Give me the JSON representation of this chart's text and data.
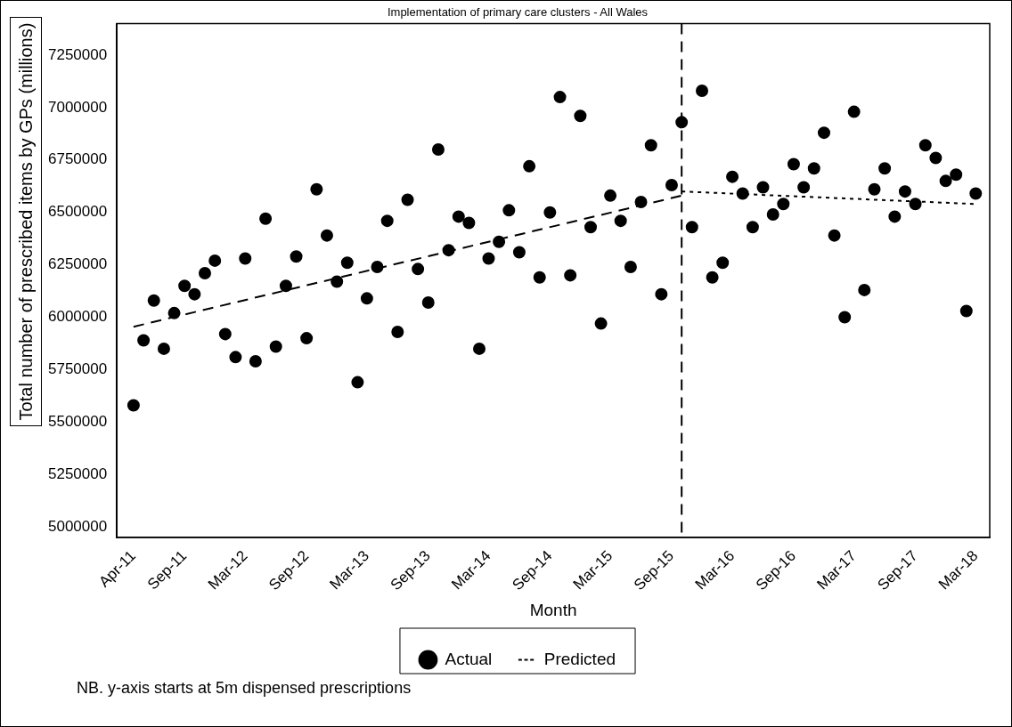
{
  "chart_data": {
    "type": "scatter",
    "title": "Implementation of primary care clusters - All Wales",
    "xlabel": "Month",
    "ylabel": "Total number of prescribed items by GPs (millions)",
    "x": [
      "2011-04",
      "2011-05",
      "2011-06",
      "2011-07",
      "2011-08",
      "2011-09",
      "2011-10",
      "2011-11",
      "2011-12",
      "2012-01",
      "2012-02",
      "2012-03",
      "2012-04",
      "2012-05",
      "2012-06",
      "2012-07",
      "2012-08",
      "2012-09",
      "2012-10",
      "2012-11",
      "2012-12",
      "2013-01",
      "2013-02",
      "2013-03",
      "2013-04",
      "2013-05",
      "2013-06",
      "2013-07",
      "2013-08",
      "2013-09",
      "2013-10",
      "2013-11",
      "2013-12",
      "2014-01",
      "2014-02",
      "2014-03",
      "2014-04",
      "2014-05",
      "2014-06",
      "2014-07",
      "2014-08",
      "2014-09",
      "2014-10",
      "2014-11",
      "2014-12",
      "2015-01",
      "2015-02",
      "2015-03",
      "2015-04",
      "2015-05",
      "2015-06",
      "2015-07",
      "2015-08",
      "2015-09",
      "2015-10",
      "2015-11",
      "2015-12",
      "2016-01",
      "2016-02",
      "2016-03",
      "2016-04",
      "2016-05",
      "2016-06",
      "2016-07",
      "2016-08",
      "2016-09",
      "2016-10",
      "2016-11",
      "2016-12",
      "2017-01",
      "2017-02",
      "2017-03",
      "2017-04",
      "2017-05",
      "2017-06",
      "2017-07",
      "2017-08",
      "2017-09",
      "2017-10",
      "2017-11",
      "2017-12",
      "2018-01",
      "2018-02",
      "2018-03"
    ],
    "series": [
      {
        "name": "Actual",
        "color": "#000000",
        "marker": "circle",
        "values": [
          5580000,
          5890000,
          6080000,
          5850000,
          6020000,
          6150000,
          6110000,
          6210000,
          6270000,
          5920000,
          5810000,
          6280000,
          5790000,
          6470000,
          5860000,
          6150000,
          6290000,
          5900000,
          6610000,
          6390000,
          6170000,
          6260000,
          5690000,
          6090000,
          6240000,
          6460000,
          5930000,
          6560000,
          6230000,
          6070000,
          6800000,
          6320000,
          6480000,
          6450000,
          5850000,
          6280000,
          6360000,
          6510000,
          6310000,
          6720000,
          6190000,
          6500000,
          7050000,
          6200000,
          6960000,
          6430000,
          5970000,
          6580000,
          6460000,
          6240000,
          6550000,
          6820000,
          6110000,
          6630000,
          6930000,
          6430000,
          7080000,
          6190000,
          6260000,
          6670000,
          6590000,
          6430000,
          6620000,
          6490000,
          6540000,
          6730000,
          6620000,
          6710000,
          6880000,
          6390000,
          6000000,
          6980000,
          6130000,
          6610000,
          6710000,
          6480000,
          6600000,
          6540000,
          6820000,
          6760000,
          6650000,
          6680000,
          6030000,
          6590000
        ]
      },
      {
        "name": "Predicted",
        "type": "line",
        "color": "#000000",
        "line_style": "dashed",
        "marker": "none",
        "x": [
          "2011-04",
          "2015-10"
        ],
        "values": [
          5955000,
          6580000
        ]
      },
      {
        "type": "line",
        "color": "#000000",
        "line_style": "dotted",
        "marker": "none",
        "x": [
          "2015-10",
          "2018-03"
        ],
        "values": [
          6600000,
          6540000
        ]
      }
    ],
    "xlim": [
      "2011-02-10",
      "2018-04-12"
    ],
    "xticks": [
      {
        "value": "2011-04",
        "label": "Apr-11"
      },
      {
        "value": "2011-09",
        "label": "Sep-11"
      },
      {
        "value": "2012-03",
        "label": "Mar-12"
      },
      {
        "value": "2012-09",
        "label": "Sep-12"
      },
      {
        "value": "2013-03",
        "label": "Mar-13"
      },
      {
        "value": "2013-09",
        "label": "Sep-13"
      },
      {
        "value": "2014-03",
        "label": "Mar-14"
      },
      {
        "value": "2014-09",
        "label": "Sep-14"
      },
      {
        "value": "2015-03",
        "label": "Mar-15"
      },
      {
        "value": "2015-09",
        "label": "Sep-15"
      },
      {
        "value": "2016-03",
        "label": "Mar-16"
      },
      {
        "value": "2016-09",
        "label": "Sep-16"
      },
      {
        "value": "2017-03",
        "label": "Mar-17"
      },
      {
        "value": "2017-09",
        "label": "Sep-17"
      },
      {
        "value": "2018-03",
        "label": "Mar-18"
      }
    ],
    "ylim": [
      4950000,
      7400000
    ],
    "yticks": [
      5000000,
      5250000,
      5500000,
      5750000,
      6000000,
      6250000,
      6500000,
      6750000,
      7000000,
      7250000
    ],
    "ref_lines": [
      {
        "axis": "x",
        "value": "2015-10",
        "color": "#000000",
        "line_style": "dashed"
      }
    ],
    "annotations": [
      "NB. y-axis starts at 5m dispensed prescriptions"
    ],
    "grid": false,
    "legend": "bottom"
  }
}
